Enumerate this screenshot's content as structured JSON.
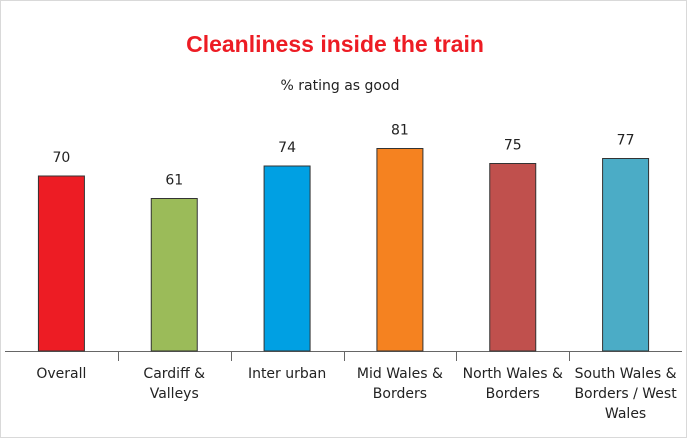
{
  "chart_data": {
    "type": "bar",
    "title": "Cleanliness inside the train",
    "subtitle": "% rating as good",
    "categories": [
      "Overall",
      "Cardiff & Valleys",
      "Inter urban",
      "Mid Wales & Borders",
      "North Wales & Borders",
      "South Wales & Borders / West Wales"
    ],
    "values": [
      70,
      61,
      74,
      81,
      75,
      77
    ],
    "colors": [
      "#ed1c24",
      "#9bbb59",
      "#00a0e3",
      "#f58220",
      "#c0504d",
      "#4bacc6"
    ]
  }
}
